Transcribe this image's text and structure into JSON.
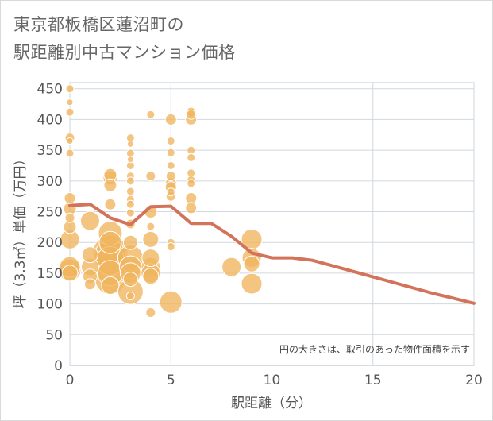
{
  "title_lines": [
    "東京都板橋区蓮沼町の",
    "駅距離別中古マンション価格"
  ],
  "colors": {
    "bubble": "#f0b55e",
    "bubble_stroke": "#ffffff",
    "line": "#d2735a",
    "grid": "#d0d7de",
    "plot_border": "#bfc8d2",
    "text": "#555555"
  },
  "chart_data": {
    "type": "scatter",
    "title": "東京都板橋区蓮沼町の駅距離別中古マンション価格",
    "xlabel": "駅距離（分）",
    "ylabel": "坪（3.3㎡）単価（万円）",
    "xlim": [
      0,
      20
    ],
    "ylim": [
      0,
      460
    ],
    "xticks": [
      0,
      5,
      10,
      15,
      20
    ],
    "yticks": [
      0,
      50,
      100,
      150,
      200,
      250,
      300,
      350,
      400,
      450
    ],
    "annotation": "円の大きさは、取引のあった物件面積を示す",
    "trend_line": {
      "x": [
        0,
        1,
        2,
        3,
        4,
        5,
        6,
        7,
        8,
        9,
        10,
        11,
        12,
        13,
        14,
        15,
        16,
        17,
        18,
        19,
        20
      ],
      "y": [
        260,
        262,
        240,
        229,
        258,
        259,
        231,
        231,
        210,
        183,
        175,
        175,
        171,
        162,
        153,
        144,
        135,
        126,
        117,
        109,
        101
      ]
    },
    "bubbles": [
      {
        "x": 0,
        "y": 450,
        "s": 5
      },
      {
        "x": 0,
        "y": 428,
        "s": 4
      },
      {
        "x": 0,
        "y": 412,
        "s": 5
      },
      {
        "x": 0,
        "y": 370,
        "s": 6
      },
      {
        "x": 0,
        "y": 365,
        "s": 4
      },
      {
        "x": 0,
        "y": 345,
        "s": 5
      },
      {
        "x": 0,
        "y": 272,
        "s": 7
      },
      {
        "x": 0,
        "y": 255,
        "s": 8
      },
      {
        "x": 0,
        "y": 240,
        "s": 6
      },
      {
        "x": 0,
        "y": 225,
        "s": 8
      },
      {
        "x": 0,
        "y": 205,
        "s": 12
      },
      {
        "x": 0,
        "y": 160,
        "s": 13
      },
      {
        "x": 0,
        "y": 155,
        "s": 14
      },
      {
        "x": 0,
        "y": 150,
        "s": 10
      },
      {
        "x": 1,
        "y": 235,
        "s": 12
      },
      {
        "x": 1,
        "y": 180,
        "s": 10
      },
      {
        "x": 1,
        "y": 160,
        "s": 11
      },
      {
        "x": 1,
        "y": 145,
        "s": 9
      },
      {
        "x": 1,
        "y": 132,
        "s": 7
      },
      {
        "x": 2,
        "y": 310,
        "s": 8
      },
      {
        "x": 2,
        "y": 305,
        "s": 9
      },
      {
        "x": 2,
        "y": 293,
        "s": 8
      },
      {
        "x": 2,
        "y": 262,
        "s": 7
      },
      {
        "x": 2,
        "y": 215,
        "s": 15
      },
      {
        "x": 2,
        "y": 200,
        "s": 14
      },
      {
        "x": 2,
        "y": 183,
        "s": 22
      },
      {
        "x": 2,
        "y": 178,
        "s": 20
      },
      {
        "x": 2,
        "y": 170,
        "s": 18
      },
      {
        "x": 2,
        "y": 150,
        "s": 16
      },
      {
        "x": 2,
        "y": 140,
        "s": 19
      },
      {
        "x": 2,
        "y": 130,
        "s": 11
      },
      {
        "x": 3,
        "y": 370,
        "s": 5
      },
      {
        "x": 3,
        "y": 360,
        "s": 4
      },
      {
        "x": 3,
        "y": 345,
        "s": 5
      },
      {
        "x": 3,
        "y": 335,
        "s": 4
      },
      {
        "x": 3,
        "y": 325,
        "s": 5
      },
      {
        "x": 3,
        "y": 308,
        "s": 5
      },
      {
        "x": 3,
        "y": 300,
        "s": 5
      },
      {
        "x": 3,
        "y": 283,
        "s": 5
      },
      {
        "x": 3,
        "y": 270,
        "s": 5
      },
      {
        "x": 3,
        "y": 262,
        "s": 5
      },
      {
        "x": 3,
        "y": 248,
        "s": 5
      },
      {
        "x": 3,
        "y": 230,
        "s": 6
      },
      {
        "x": 3,
        "y": 200,
        "s": 9
      },
      {
        "x": 3,
        "y": 175,
        "s": 16
      },
      {
        "x": 3,
        "y": 160,
        "s": 14
      },
      {
        "x": 3,
        "y": 150,
        "s": 13
      },
      {
        "x": 3,
        "y": 140,
        "s": 9
      },
      {
        "x": 3,
        "y": 120,
        "s": 16
      },
      {
        "x": 3,
        "y": 113,
        "s": 5
      },
      {
        "x": 4,
        "y": 408,
        "s": 5
      },
      {
        "x": 4,
        "y": 308,
        "s": 6
      },
      {
        "x": 4,
        "y": 250,
        "s": 8
      },
      {
        "x": 4,
        "y": 226,
        "s": 5
      },
      {
        "x": 4,
        "y": 205,
        "s": 10
      },
      {
        "x": 4,
        "y": 175,
        "s": 11
      },
      {
        "x": 4,
        "y": 160,
        "s": 12
      },
      {
        "x": 4,
        "y": 150,
        "s": 12
      },
      {
        "x": 4,
        "y": 145,
        "s": 10
      },
      {
        "x": 4,
        "y": 86,
        "s": 6
      },
      {
        "x": 5,
        "y": 400,
        "s": 7
      },
      {
        "x": 5,
        "y": 365,
        "s": 5
      },
      {
        "x": 5,
        "y": 346,
        "s": 5
      },
      {
        "x": 5,
        "y": 325,
        "s": 5
      },
      {
        "x": 5,
        "y": 308,
        "s": 6
      },
      {
        "x": 5,
        "y": 296,
        "s": 7
      },
      {
        "x": 5,
        "y": 290,
        "s": 7
      },
      {
        "x": 5,
        "y": 282,
        "s": 5
      },
      {
        "x": 5,
        "y": 275,
        "s": 6
      },
      {
        "x": 5,
        "y": 200,
        "s": 5
      },
      {
        "x": 5,
        "y": 193,
        "s": 5
      },
      {
        "x": 5,
        "y": 103,
        "s": 14
      },
      {
        "x": 6,
        "y": 412,
        "s": 6
      },
      {
        "x": 6,
        "y": 408,
        "s": 6
      },
      {
        "x": 6,
        "y": 400,
        "s": 7
      },
      {
        "x": 6,
        "y": 350,
        "s": 5
      },
      {
        "x": 6,
        "y": 338,
        "s": 5
      },
      {
        "x": 6,
        "y": 313,
        "s": 5
      },
      {
        "x": 6,
        "y": 302,
        "s": 5
      },
      {
        "x": 6,
        "y": 296,
        "s": 5
      },
      {
        "x": 6,
        "y": 272,
        "s": 7
      },
      {
        "x": 6,
        "y": 256,
        "s": 7
      },
      {
        "x": 8,
        "y": 160,
        "s": 12
      },
      {
        "x": 9,
        "y": 205,
        "s": 13
      },
      {
        "x": 9,
        "y": 175,
        "s": 12
      },
      {
        "x": 9,
        "y": 165,
        "s": 10
      },
      {
        "x": 9,
        "y": 133,
        "s": 13
      }
    ]
  }
}
